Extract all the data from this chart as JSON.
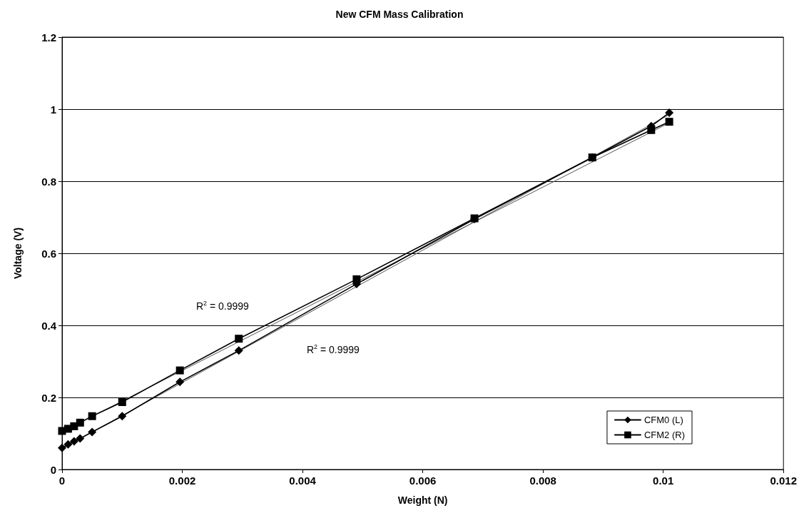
{
  "chart_data": {
    "type": "line",
    "title": "New CFM Mass Calibration",
    "xlabel": "Weight (N)",
    "ylabel": "Voltage (V)",
    "xlim": [
      0,
      0.012
    ],
    "xticks": [
      0,
      0.002,
      0.004,
      0.006,
      0.008,
      0.01,
      0.012
    ],
    "ylim": [
      0,
      1.2
    ],
    "yticks": [
      0,
      0.2,
      0.4,
      0.6,
      0.8,
      1,
      1.2
    ],
    "grid": "y",
    "legend": "bottom right",
    "line_style": "solid",
    "annotations": [
      "R$^{2}$ = 0.9999",
      "R$^{2}$ = 0.9999"
    ],
    "series": [
      {
        "name": "CFM0 (L)",
        "color": "#000000",
        "marker": "diamond",
        "x": [
          0,
          0.0001,
          0.0002,
          0.0003,
          0.0005,
          0.001,
          0.00196,
          0.00294,
          0.0049,
          0.00686,
          0.00882,
          0.0098,
          0.0101
        ],
        "values": [
          0.06,
          0.07,
          0.078,
          0.086,
          0.104,
          0.148,
          0.243,
          0.33,
          0.515,
          0.695,
          0.866,
          0.953,
          0.99
        ]
      },
      {
        "name": "CFM2 (R)",
        "color": "#000000",
        "marker": "square",
        "x": [
          0,
          0.0001,
          0.0002,
          0.0003,
          0.0005,
          0.001,
          0.00196,
          0.00294,
          0.0049,
          0.00686,
          0.00882,
          0.0098,
          0.0101
        ],
        "values": [
          0.107,
          0.113,
          0.12,
          0.13,
          0.148,
          0.187,
          0.275,
          0.363,
          0.528,
          0.697,
          0.866,
          0.942,
          0.965
        ]
      },
      {
        "type": "line",
        "color": "#555555",
        "marker": "none",
        "x": [
          0,
          0.0101
        ],
        "values": [
          0.058,
          0.985
        ]
      },
      {
        "type": "line",
        "color": "#555555",
        "marker": "none",
        "x": [
          0,
          0.0101
        ],
        "values": [
          0.105,
          0.962
        ]
      }
    ]
  }
}
